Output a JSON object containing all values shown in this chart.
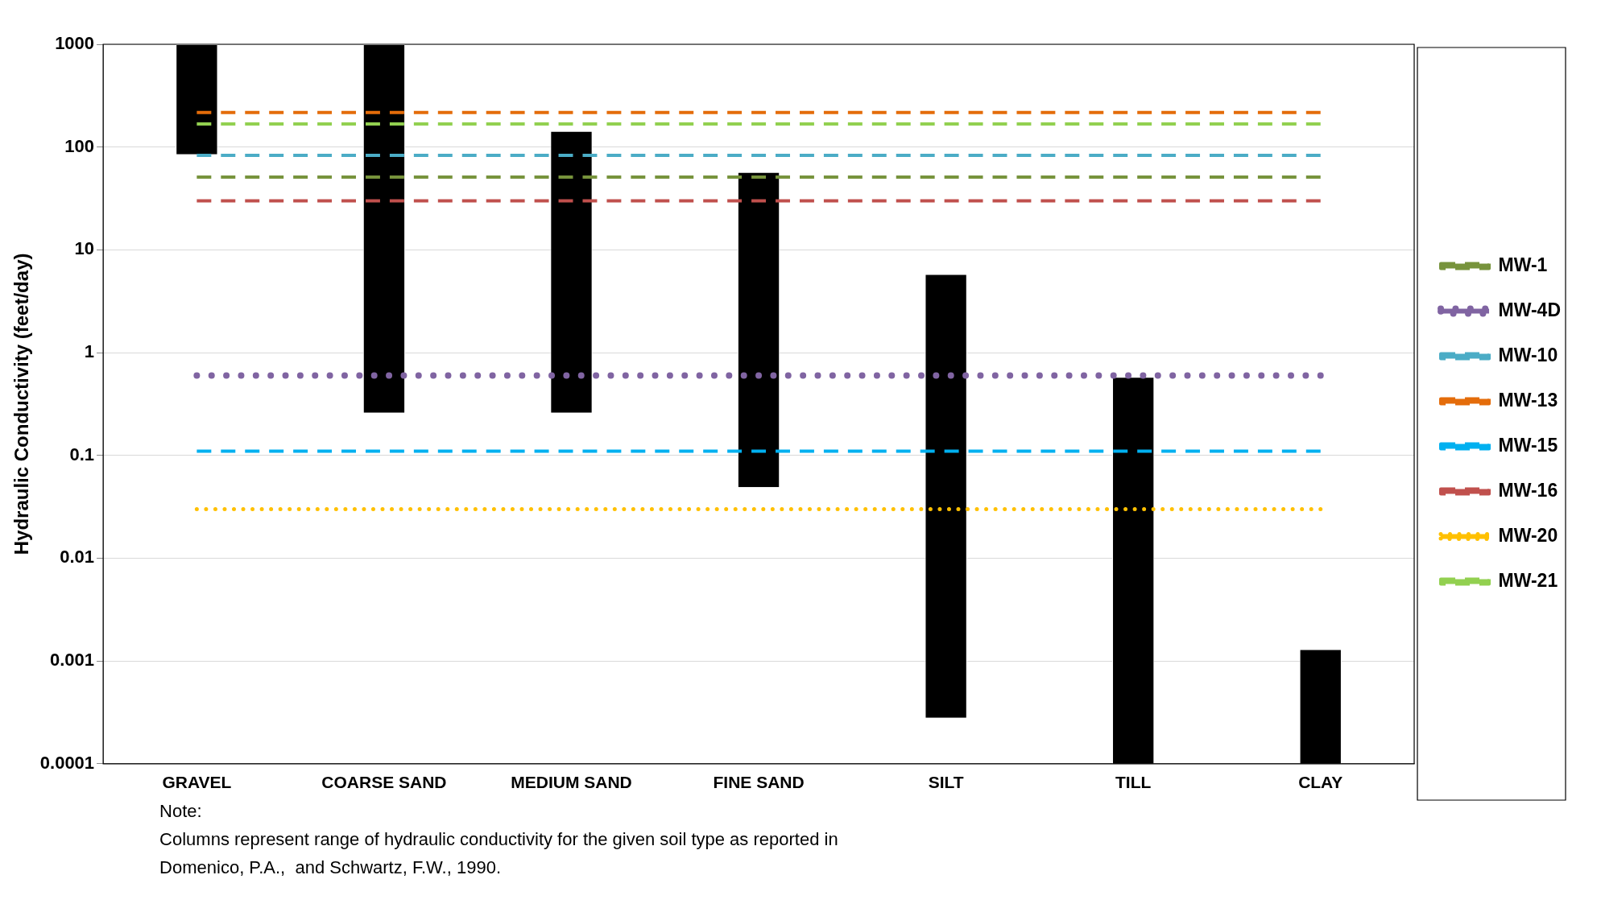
{
  "chart_data": {
    "type": "bar",
    "ylabel": "Hydraulic Conductivity (feet/day)",
    "categories": [
      "GRAVEL",
      "COARSE SAND",
      "MEDIUM SAND",
      "FINE SAND",
      "SILT",
      "TILL",
      "CLAY"
    ],
    "series": [
      {
        "type": "bar",
        "color": "#000000",
        "base": [
          85,
          0.26,
          0.26,
          0.049,
          0.00028,
          0.0001,
          0.0001
        ],
        "values": [
          915,
          999.74,
          142.74,
          56.951,
          5.79972,
          0.5799,
          0.0012
        ]
      },
      {
        "type": "line",
        "name": "MW-1",
        "color": "#77933c",
        "line_style": "dashed",
        "values": [
          51,
          51,
          51,
          51,
          51,
          51,
          51
        ]
      },
      {
        "type": "line",
        "name": "MW-4D",
        "color": "#8064a2",
        "line_style": "dotted",
        "values": [
          0.6,
          0.6,
          0.6,
          0.6,
          0.6,
          0.6,
          0.6
        ]
      },
      {
        "type": "line",
        "name": "MW-10",
        "color": "#4bacc6",
        "line_style": "dashed",
        "values": [
          83,
          83,
          83,
          83,
          83,
          83,
          83
        ]
      },
      {
        "type": "line",
        "name": "MW-13",
        "color": "#e46c0a",
        "line_style": "dashed",
        "values": [
          217,
          217,
          217,
          217,
          217,
          217,
          217
        ]
      },
      {
        "type": "line",
        "name": "MW-15",
        "color": "#00b0f0",
        "line_style": "dashed",
        "values": [
          0.11,
          0.11,
          0.11,
          0.11,
          0.11,
          0.11,
          0.11
        ]
      },
      {
        "type": "line",
        "name": "MW-16",
        "color": "#c0504d",
        "line_style": "dashed",
        "values": [
          30,
          30,
          30,
          30,
          30,
          30,
          30
        ]
      },
      {
        "type": "line",
        "name": "MW-20",
        "color": "#ffc000",
        "line_style": "dotted",
        "values": [
          0.03,
          0.03,
          0.03,
          0.03,
          0.03,
          0.03,
          0.03
        ]
      },
      {
        "type": "line",
        "name": "MW-21",
        "color": "#92d050",
        "line_style": "dashed",
        "values": [
          168,
          168,
          168,
          168,
          168,
          168,
          168
        ]
      }
    ],
    "log": "y",
    "ylim": [
      0.0001,
      1000
    ],
    "yticks": [
      0.0001,
      0.001,
      0.01,
      0.1,
      1,
      10,
      100,
      1000
    ],
    "grid": "y",
    "legend": "right",
    "annotations": [
      "Note:",
      "Columns represent range of hydraulic conductivity for the given soil type as reported in",
      "Domenico, P.A.,  and Schwartz, F.W., 1990."
    ]
  }
}
